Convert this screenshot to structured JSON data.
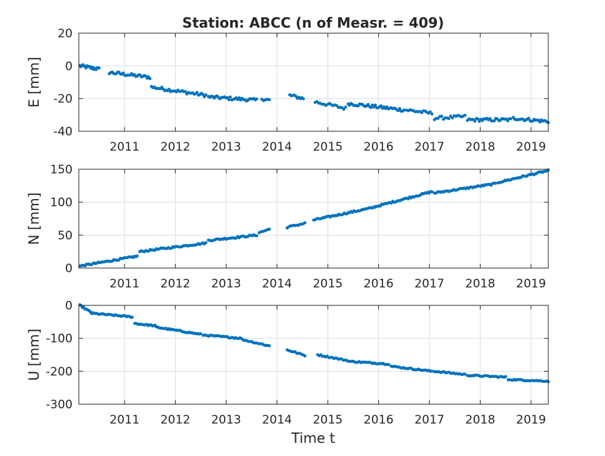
{
  "figure": {
    "title": "Station: ABCC (n of Measr. = 409)",
    "xlabel": "Time t"
  },
  "colors": {
    "marker": "#0072bd",
    "grid": "#dfdfdf",
    "axis": "#262626",
    "background": "#ffffff"
  },
  "chart_data": [
    {
      "type": "scatter",
      "name": "E",
      "ylabel": "E [mm]",
      "xlim": [
        2010.1,
        2019.34
      ],
      "ylim": [
        -40,
        20
      ],
      "yticks": [
        -40,
        -20,
        0,
        20
      ],
      "xticks": [
        2011,
        2012,
        2013,
        2014,
        2015,
        2016,
        2017,
        2018,
        2019
      ],
      "grid": true,
      "segments": [
        {
          "x0": 2010.12,
          "x1": 2010.5,
          "y0": 0,
          "y1": -2,
          "n": 20
        },
        {
          "x0": 2010.7,
          "x1": 2011.5,
          "y0": -4,
          "y1": -7,
          "n": 30
        },
        {
          "x0": 2011.53,
          "x1": 2012.6,
          "y0": -13,
          "y1": -18,
          "n": 38
        },
        {
          "x0": 2012.65,
          "x1": 2013.6,
          "y0": -19,
          "y1": -21,
          "n": 34
        },
        {
          "x0": 2013.7,
          "x1": 2013.85,
          "y0": -20,
          "y1": -21,
          "n": 6
        },
        {
          "x0": 2014.25,
          "x1": 2014.52,
          "y0": -18,
          "y1": -20,
          "n": 10
        },
        {
          "x0": 2014.75,
          "x1": 2015.35,
          "y0": -22,
          "y1": -26,
          "n": 18
        },
        {
          "x0": 2015.4,
          "x1": 2016.5,
          "y0": -23,
          "y1": -27,
          "n": 40
        },
        {
          "x0": 2016.55,
          "x1": 2017.05,
          "y0": -27,
          "y1": -29,
          "n": 16
        },
        {
          "x0": 2017.1,
          "x1": 2017.7,
          "y0": -32,
          "y1": -31,
          "n": 18
        },
        {
          "x0": 2017.75,
          "x1": 2018.6,
          "y0": -33,
          "y1": -33,
          "n": 30
        },
        {
          "x0": 2018.65,
          "x1": 2019.34,
          "y0": -32,
          "y1": -34,
          "n": 26
        }
      ],
      "noise": 1.0
    },
    {
      "type": "scatter",
      "name": "N",
      "ylabel": "N [mm]",
      "xlim": [
        2010.1,
        2019.34
      ],
      "ylim": [
        0,
        150
      ],
      "yticks": [
        0,
        50,
        100,
        150
      ],
      "xticks": [
        2011,
        2012,
        2013,
        2014,
        2015,
        2016,
        2017,
        2018,
        2019
      ],
      "grid": true,
      "segments": [
        {
          "x0": 2010.12,
          "x1": 2011.25,
          "y0": 3,
          "y1": 18,
          "n": 45
        },
        {
          "x0": 2011.3,
          "x1": 2012.6,
          "y0": 25,
          "y1": 38,
          "n": 45
        },
        {
          "x0": 2012.65,
          "x1": 2013.6,
          "y0": 42,
          "y1": 50,
          "n": 34
        },
        {
          "x0": 2013.65,
          "x1": 2013.85,
          "y0": 54,
          "y1": 59,
          "n": 7
        },
        {
          "x0": 2014.2,
          "x1": 2014.55,
          "y0": 62,
          "y1": 68,
          "n": 12
        },
        {
          "x0": 2014.72,
          "x1": 2015.9,
          "y0": 73,
          "y1": 92,
          "n": 44
        },
        {
          "x0": 2015.92,
          "x1": 2017.05,
          "y0": 93,
          "y1": 116,
          "n": 42
        },
        {
          "x0": 2017.1,
          "x1": 2018.3,
          "y0": 114,
          "y1": 128,
          "n": 42
        },
        {
          "x0": 2018.35,
          "x1": 2019.34,
          "y0": 130,
          "y1": 148,
          "n": 36
        }
      ],
      "noise": 1.2
    },
    {
      "type": "scatter",
      "name": "U",
      "ylabel": "U [mm]",
      "xlim": [
        2010.1,
        2019.34
      ],
      "ylim": [
        -300,
        0
      ],
      "yticks": [
        -300,
        -200,
        -100,
        0
      ],
      "xticks": [
        2011,
        2012,
        2013,
        2014,
        2015,
        2016,
        2017,
        2018,
        2019
      ],
      "grid": true,
      "segments": [
        {
          "x0": 2010.12,
          "x1": 2010.35,
          "y0": 0,
          "y1": -22,
          "n": 10
        },
        {
          "x0": 2010.35,
          "x1": 2011.15,
          "y0": -24,
          "y1": -35,
          "n": 30
        },
        {
          "x0": 2011.2,
          "x1": 2011.6,
          "y0": -55,
          "y1": -62,
          "n": 16
        },
        {
          "x0": 2011.62,
          "x1": 2012.5,
          "y0": -66,
          "y1": -88,
          "n": 32
        },
        {
          "x0": 2012.55,
          "x1": 2013.3,
          "y0": -90,
          "y1": -100,
          "n": 28
        },
        {
          "x0": 2013.32,
          "x1": 2013.85,
          "y0": -104,
          "y1": -123,
          "n": 18
        },
        {
          "x0": 2014.2,
          "x1": 2014.55,
          "y0": -135,
          "y1": -152,
          "n": 12
        },
        {
          "x0": 2014.8,
          "x1": 2015.4,
          "y0": -150,
          "y1": -168,
          "n": 20
        },
        {
          "x0": 2015.42,
          "x1": 2016.2,
          "y0": -170,
          "y1": -178,
          "n": 28
        },
        {
          "x0": 2016.25,
          "x1": 2017.05,
          "y0": -185,
          "y1": -200,
          "n": 28
        },
        {
          "x0": 2017.1,
          "x1": 2017.7,
          "y0": -200,
          "y1": -210,
          "n": 20
        },
        {
          "x0": 2017.75,
          "x1": 2018.5,
          "y0": -212,
          "y1": -218,
          "n": 26
        },
        {
          "x0": 2018.55,
          "x1": 2019.34,
          "y0": -225,
          "y1": -230,
          "n": 28
        }
      ],
      "noise": 2.0
    }
  ]
}
